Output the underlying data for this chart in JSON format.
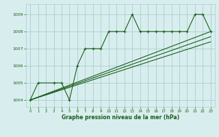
{
  "background_color": "#d8eeee",
  "grid_color": "#aacccc",
  "line_color": "#1a5c1a",
  "title": "Graphe pression niveau de la mer (hPa)",
  "xlim": [
    -0.5,
    23.5
  ],
  "ylim": [
    1003.6,
    1009.6
  ],
  "yticks": [
    1004,
    1005,
    1006,
    1007,
    1008,
    1009
  ],
  "xticks": [
    0,
    1,
    2,
    3,
    4,
    5,
    6,
    7,
    8,
    9,
    10,
    11,
    12,
    13,
    14,
    15,
    16,
    17,
    18,
    19,
    20,
    21,
    22,
    23
  ],
  "series": [
    {
      "x": [
        0,
        1,
        3,
        4,
        5,
        6,
        7,
        8,
        9,
        10,
        11,
        12,
        13,
        14,
        15,
        16,
        17,
        18,
        19,
        20,
        21,
        22,
        23
      ],
      "y": [
        1004.0,
        1005.0,
        1005.0,
        1005.0,
        1004.0,
        1006.0,
        1007.0,
        1007.0,
        1007.0,
        1008.0,
        1008.0,
        1008.0,
        1009.0,
        1008.0,
        1008.0,
        1008.0,
        1008.0,
        1008.0,
        1008.0,
        1008.0,
        1009.0,
        1009.0,
        1008.0
      ]
    },
    {
      "x": [
        0,
        23
      ],
      "y": [
        1004.0,
        1008.0
      ]
    },
    {
      "x": [
        0,
        23
      ],
      "y": [
        1004.0,
        1007.7
      ]
    },
    {
      "x": [
        0,
        23
      ],
      "y": [
        1004.0,
        1007.4
      ]
    }
  ]
}
